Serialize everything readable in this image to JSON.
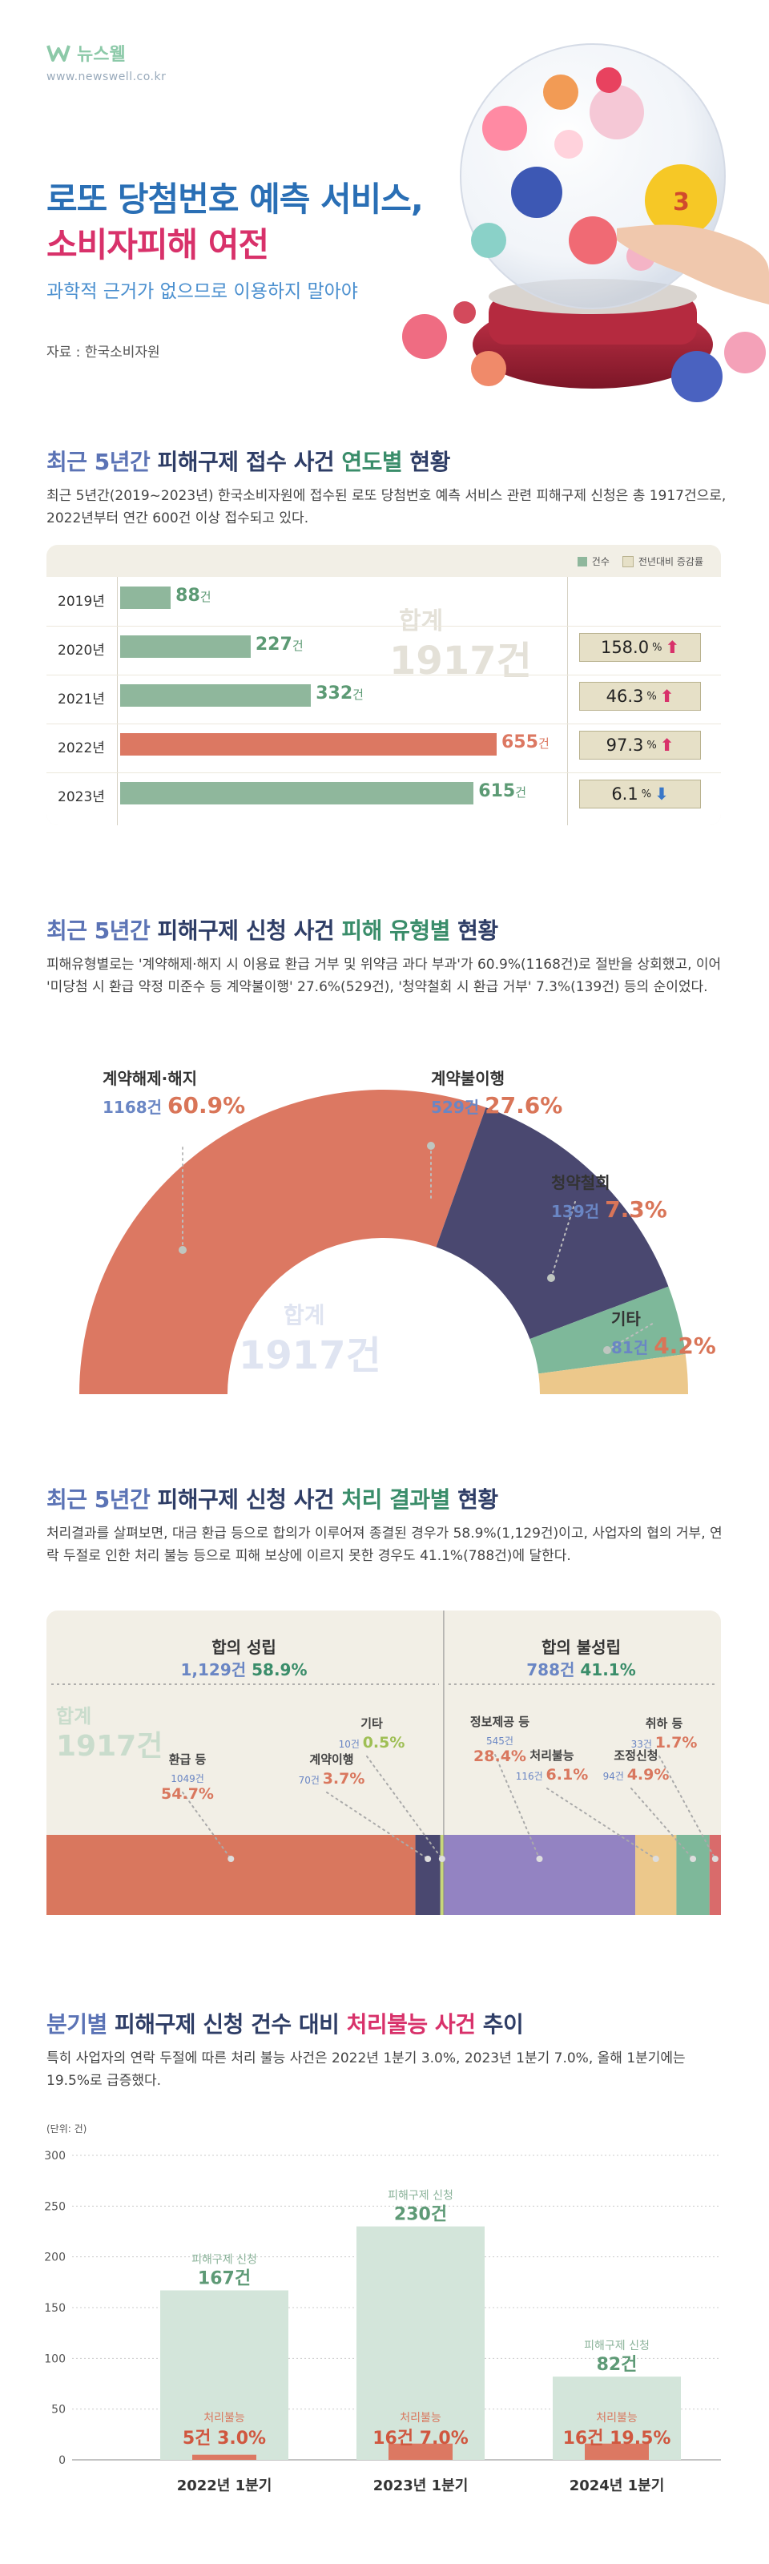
{
  "header": {
    "brand": "뉴스웰",
    "brand_url": "www.newswell.co.kr",
    "title_line1": "로또 당첨번호 예측 서비스,",
    "title_line2": "소비자피해 여전",
    "subtitle": "과학적 근거가 없으므로 이용하지 말아야",
    "source": "자료 : 한국소비자원"
  },
  "colors": {
    "green": "#8fb79c",
    "coral": "#dc7862",
    "navy": "#4a4870",
    "blue": "#6a86c4",
    "purple": "#9383c2",
    "sand": "#ecc88b",
    "teal": "#7eb89a",
    "pink": "#d8316a"
  },
  "section1": {
    "title_a": "최근 5년간",
    "title_b": "피해구제 접수 사건",
    "title_c": "연도별",
    "title_d": "현황",
    "desc": "최근 5년간(2019~2023년) 한국소비자원에 접수된 로또 당첨번호 예측 서비스 관련 피해구제 신청은 총 1917건으로, 2022년부터 연간 600건 이상 접수되고 있다.",
    "legend_count": "건수",
    "legend_rate": "전년대비 증감률",
    "total_label": "합계",
    "total_value": "1917건",
    "unit": "건",
    "pct_unit": "%"
  },
  "section2": {
    "title_a": "최근 5년간",
    "title_b": "피해구제 신청 사건",
    "title_c": "피해 유형별",
    "title_d": "현황",
    "desc": "피해유형별로는 '계약해제·해지 시 이용료 환급 거부 및 위약금 과다 부과'가 60.9%(1168건)로 절반을 상회했고, 이어 '미당첨 시 환급 약정 미준수 등 계약불이행' 27.6%(529건), '청약철회 시 환급 거부' 7.3%(139건) 등의 순이었다.",
    "total_label": "합계",
    "total_value": "1917건"
  },
  "section3": {
    "title_a": "최근 5년간",
    "title_b": "피해구제 신청 사건",
    "title_c": "처리 결과별",
    "title_d": "현황",
    "desc": "처리결과를 살펴보면, 대금 환급 등으로 합의가 이루어져 종결된 경우가 58.9%(1,129건)이고, 사업자의 협의 거부, 연락 두절로 인한 처리 불능 등으로 피해 보상에 이르지 못한 경우도 41.1%(788건)에 달한다.",
    "group1_label": "합의 성립",
    "group1_count": "1,129건",
    "group1_pct": "58.9%",
    "group2_label": "합의 불성립",
    "group2_count": "788건",
    "group2_pct": "41.1%",
    "total_label": "합계",
    "total_value": "1917건"
  },
  "section4": {
    "title_a": "분기별",
    "title_b": "피해구제 신청 건수 대비",
    "title_c": "처리불능 사건",
    "title_d": "추이",
    "desc": "특히 사업자의 연락 두절에 따른 처리 불능 사건은 2022년 1분기 3.0%, 2023년 1분기 7.0%, 올해 1분기에는 19.5%로 급증했다.",
    "unit_note": "(단위: 건)",
    "applied_label": "피해구제 신청",
    "failed_label": "처리불능"
  },
  "chart_data": [
    {
      "type": "bar",
      "orientation": "horizontal",
      "categories": [
        "2019년",
        "2020년",
        "2021년",
        "2022년",
        "2023년"
      ],
      "series": [
        {
          "name": "건수",
          "values": [
            88,
            227,
            332,
            655,
            615
          ]
        },
        {
          "name": "전년대비 증감률",
          "values": [
            null,
            158.0,
            46.3,
            97.3,
            6.1
          ],
          "direction": [
            null,
            "up",
            "up",
            "up",
            "down"
          ]
        }
      ],
      "legend": "top-right",
      "total": "1917건"
    },
    {
      "type": "pie",
      "style": "half-donut",
      "slices": [
        {
          "label": "계약해제·해지",
          "count": "1168건",
          "value": 60.9,
          "pct_text": "60.9%"
        },
        {
          "label": "계약불이행",
          "count": "529건",
          "value": 27.6,
          "pct_text": "27.6%"
        },
        {
          "label": "청약철회",
          "count": "139건",
          "value": 7.3,
          "pct_text": "7.3%"
        },
        {
          "label": "기타",
          "count": "81건",
          "value": 4.2,
          "pct_text": "4.2%"
        }
      ]
    },
    {
      "type": "bar",
      "style": "stacked-100",
      "segments": [
        {
          "label": "환급 등",
          "count": "1049건",
          "value": 54.7,
          "pct_text": "54.7%",
          "group": "합의 성립"
        },
        {
          "label": "계약이행",
          "count": "70건",
          "value": 3.7,
          "pct_text": "3.7%",
          "group": "합의 성립"
        },
        {
          "label": "기타",
          "count": "10건",
          "value": 0.5,
          "pct_text": "0.5%",
          "group": "합의 성립"
        },
        {
          "label": "정보제공 등",
          "count": "545건",
          "value": 28.4,
          "pct_text": "28.4%",
          "group": "합의 불성립"
        },
        {
          "label": "처리불능",
          "count": "116건",
          "value": 6.1,
          "pct_text": "6.1%",
          "group": "합의 불성립"
        },
        {
          "label": "조정신청",
          "count": "94건",
          "value": 4.9,
          "pct_text": "4.9%",
          "group": "합의 불성립"
        },
        {
          "label": "취하 등",
          "count": "33건",
          "value": 1.7,
          "pct_text": "1.7%",
          "group": "합의 불성립"
        }
      ]
    },
    {
      "type": "bar",
      "categories": [
        "2022년 1분기",
        "2023년 1분기",
        "2024년 1분기"
      ],
      "series": [
        {
          "name": "피해구제 신청",
          "values": [
            167,
            230,
            82
          ]
        },
        {
          "name": "처리불능",
          "values": [
            5,
            16,
            16
          ],
          "pct_text": [
            "3.0%",
            "7.0%",
            "19.5%"
          ]
        }
      ],
      "ylim": [
        0,
        300
      ],
      "yticks": [
        0,
        50,
        100,
        150,
        200,
        250,
        300
      ],
      "ylabel": "(단위: 건)"
    }
  ]
}
